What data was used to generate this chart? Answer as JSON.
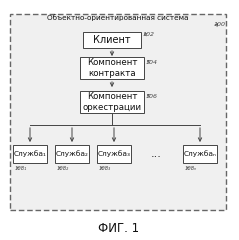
{
  "title": "ФИГ. 1",
  "outer_label": "Объектно-ориентированная система",
  "box_client": "Клиент",
  "box_contract": "Компонент\nконтракта",
  "box_orch": "Компонент\nоркестрации",
  "services": [
    "Служба₁",
    "Служба₂",
    "Служба₃",
    "...",
    "Службаₙ"
  ],
  "label_102": "102",
  "label_104": "104",
  "label_106": "106",
  "label_100": "100",
  "label_108_1": "108₁",
  "label_108_2": "108₂",
  "label_108_3": "108₃",
  "label_108_n": "108ₙ",
  "bg_color": "#ffffff",
  "box_fill": "#ffffff",
  "border_color": "#444444",
  "text_color": "#111111",
  "label_color": "#444444",
  "dash_color": "#666666",
  "outer_fill": "#f0f0f0"
}
